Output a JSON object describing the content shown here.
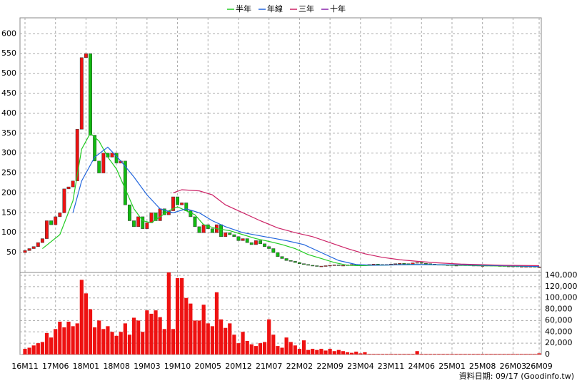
{
  "chart_data": {
    "type": "candlestick",
    "legend": [
      {
        "name": "半年",
        "color": "#22cc22"
      },
      {
        "name": "年線",
        "color": "#2266dd"
      },
      {
        "name": "三年",
        "color": "#cc2266"
      },
      {
        "name": "十年",
        "color": "#8822aa"
      }
    ],
    "source": "資料日期: 09/17 (Goodinfo.tw)",
    "categories": [
      "16M11",
      null,
      null,
      null,
      null,
      null,
      null,
      "17M06",
      null,
      null,
      null,
      null,
      null,
      null,
      "18M01",
      null,
      null,
      null,
      null,
      null,
      null,
      "18M08",
      null,
      null,
      null,
      null,
      null,
      null,
      "19M03",
      null,
      null,
      null,
      null,
      null,
      null,
      "19M10",
      null,
      null,
      null,
      null,
      null,
      null,
      "20M05",
      null,
      null,
      null,
      null,
      null,
      null,
      "20M12",
      null,
      null,
      null,
      null,
      null,
      null,
      "21M07",
      null,
      null,
      null,
      null,
      null,
      null,
      "22M02",
      null,
      null,
      null,
      null,
      null,
      null,
      "22M09",
      null,
      null,
      null,
      null,
      null,
      null,
      "23M04",
      null,
      null,
      null,
      null,
      null,
      null,
      "23M11",
      null,
      null,
      null,
      null,
      null,
      null,
      "24M06",
      null,
      null,
      null,
      null,
      null,
      null,
      "25M01",
      null,
      null,
      null,
      null,
      null,
      null,
      "25M08",
      null,
      null,
      null,
      null,
      null,
      null,
      "26M03",
      null,
      null,
      null,
      null,
      null,
      "26M09"
    ],
    "open": [
      50,
      55,
      60,
      65,
      75,
      85,
      130,
      120,
      140,
      150,
      210,
      215,
      230,
      360,
      540,
      550,
      345,
      280,
      250,
      300,
      290,
      300,
      275,
      280,
      170,
      130,
      115,
      140,
      110,
      125,
      150,
      130,
      160,
      145,
      155,
      190,
      170,
      175,
      155,
      140,
      115,
      100,
      120,
      110,
      100,
      120,
      90,
      100,
      95,
      90,
      80,
      85,
      75,
      70,
      80,
      72,
      65,
      60,
      50,
      40,
      35,
      30,
      28,
      25,
      22,
      20,
      18,
      17,
      16,
      16,
      17,
      18,
      19,
      18,
      18,
      19,
      20,
      19,
      18,
      19,
      20,
      21,
      20,
      19,
      20,
      21,
      22,
      23,
      22,
      21,
      24,
      25,
      23,
      22,
      21,
      20,
      20,
      19,
      19,
      18,
      18,
      19,
      19,
      18,
      18,
      17,
      17,
      18,
      18,
      17,
      17,
      16,
      16,
      16,
      15,
      15,
      15,
      15,
      14
    ],
    "close": [
      55,
      60,
      65,
      75,
      85,
      130,
      120,
      140,
      150,
      210,
      215,
      230,
      360,
      540,
      550,
      345,
      280,
      250,
      300,
      290,
      300,
      275,
      280,
      170,
      130,
      115,
      140,
      110,
      125,
      150,
      130,
      160,
      145,
      155,
      190,
      170,
      175,
      155,
      140,
      115,
      100,
      120,
      110,
      100,
      120,
      90,
      100,
      95,
      90,
      80,
      85,
      75,
      70,
      80,
      72,
      65,
      60,
      50,
      40,
      35,
      30,
      28,
      25,
      22,
      20,
      18,
      17,
      16,
      16,
      17,
      18,
      19,
      18,
      18,
      19,
      20,
      19,
      18,
      19,
      20,
      21,
      20,
      19,
      20,
      21,
      22,
      23,
      22,
      21,
      24,
      25,
      23,
      22,
      21,
      20,
      20,
      19,
      19,
      18,
      18,
      19,
      19,
      18,
      18,
      17,
      17,
      18,
      18,
      17,
      17,
      16,
      16,
      16,
      15,
      15,
      15,
      15,
      14,
      14
    ],
    "volume": {
      "color": "#ee1111",
      "values": [
        10000,
        12000,
        16000,
        20000,
        22000,
        38000,
        30000,
        45000,
        58000,
        48000,
        58000,
        50000,
        55000,
        132000,
        108000,
        80000,
        48000,
        60000,
        45000,
        50000,
        40000,
        33000,
        40000,
        55000,
        35000,
        65000,
        60000,
        40000,
        78000,
        72000,
        78000,
        66000,
        45000,
        145000,
        45000,
        135000,
        135000,
        100000,
        90000,
        60000,
        60000,
        88000,
        55000,
        50000,
        110000,
        62000,
        47000,
        55000,
        35000,
        20000,
        40000,
        24000,
        18000,
        15000,
        20000,
        22000,
        62000,
        35000,
        15000,
        12000,
        30000,
        22000,
        16000,
        10000,
        25000,
        8000,
        10000,
        8000,
        10000,
        7000,
        10000,
        6000,
        8000,
        6000,
        4000,
        3000,
        5000,
        2000,
        4000,
        1000,
        1000,
        1000,
        1000,
        1000,
        1000,
        1000,
        1000,
        1000,
        1000,
        1000,
        6000,
        1000,
        1000,
        1000,
        1000,
        1000,
        1000,
        1000,
        1000,
        1000,
        1000,
        1000,
        1000,
        1000,
        1000,
        1000,
        1000,
        1000,
        1000,
        1000,
        1000,
        1000,
        1000,
        1000,
        1000,
        1000,
        1000,
        1000,
        2000
      ]
    },
    "up_color": "#ee1111",
    "down_color": "#11bb11",
    "series": [
      {
        "name": "半年",
        "color": "#22cc22",
        "x": [
          4,
          8,
          11,
          13,
          15,
          17,
          19,
          21,
          23,
          25,
          27,
          29,
          31,
          33,
          35,
          37,
          39,
          41,
          44,
          47,
          50,
          53,
          56,
          59,
          62,
          65,
          68,
          71,
          74,
          77,
          80,
          85,
          90,
          95,
          100,
          105,
          110,
          118
        ],
        "values": [
          60,
          95,
          180,
          310,
          350,
          330,
          290,
          260,
          210,
          160,
          130,
          125,
          140,
          155,
          165,
          155,
          145,
          120,
          110,
          105,
          95,
          85,
          78,
          70,
          60,
          45,
          35,
          25,
          18,
          17,
          18,
          19,
          20,
          19,
          18,
          17,
          16,
          15
        ]
      },
      {
        "name": "年線",
        "color": "#2266dd",
        "x": [
          11,
          13,
          16,
          19,
          22,
          25,
          28,
          31,
          34,
          37,
          40,
          43,
          46,
          50,
          55,
          60,
          64,
          68,
          72,
          76,
          80,
          90,
          100,
          110,
          118
        ],
        "values": [
          150,
          230,
          290,
          315,
          280,
          240,
          195,
          160,
          150,
          160,
          150,
          130,
          115,
          100,
          90,
          80,
          70,
          50,
          30,
          20,
          18,
          20,
          19,
          17,
          15
        ]
      },
      {
        "name": "三年",
        "color": "#cc2266",
        "x": [
          34,
          36,
          40,
          43,
          46,
          50,
          54,
          58,
          62,
          66,
          70,
          74,
          78,
          82,
          86,
          90,
          95,
          100,
          110,
          118
        ],
        "values": [
          200,
          208,
          205,
          195,
          170,
          150,
          130,
          112,
          100,
          90,
          75,
          60,
          47,
          38,
          32,
          28,
          24,
          21,
          18,
          17
        ]
      }
    ],
    "ylim": [
      0,
      640
    ],
    "yticks": [
      50,
      100,
      150,
      200,
      250,
      300,
      350,
      400,
      450,
      500,
      550,
      600
    ],
    "y2lim": [
      0,
      145000
    ],
    "y2ticks": [
      0,
      {
        "value": 20000,
        "label": "20,000"
      },
      {
        "value": 40000,
        "label": "40,000"
      },
      {
        "value": 60000,
        "label": "60,000"
      },
      {
        "value": 80000,
        "label": "80,000"
      },
      {
        "value": 100000,
        "label": "100,000"
      },
      {
        "value": 120000,
        "label": "120,000"
      },
      {
        "value": 140000,
        "label": "140,000"
      }
    ],
    "grid": true
  }
}
